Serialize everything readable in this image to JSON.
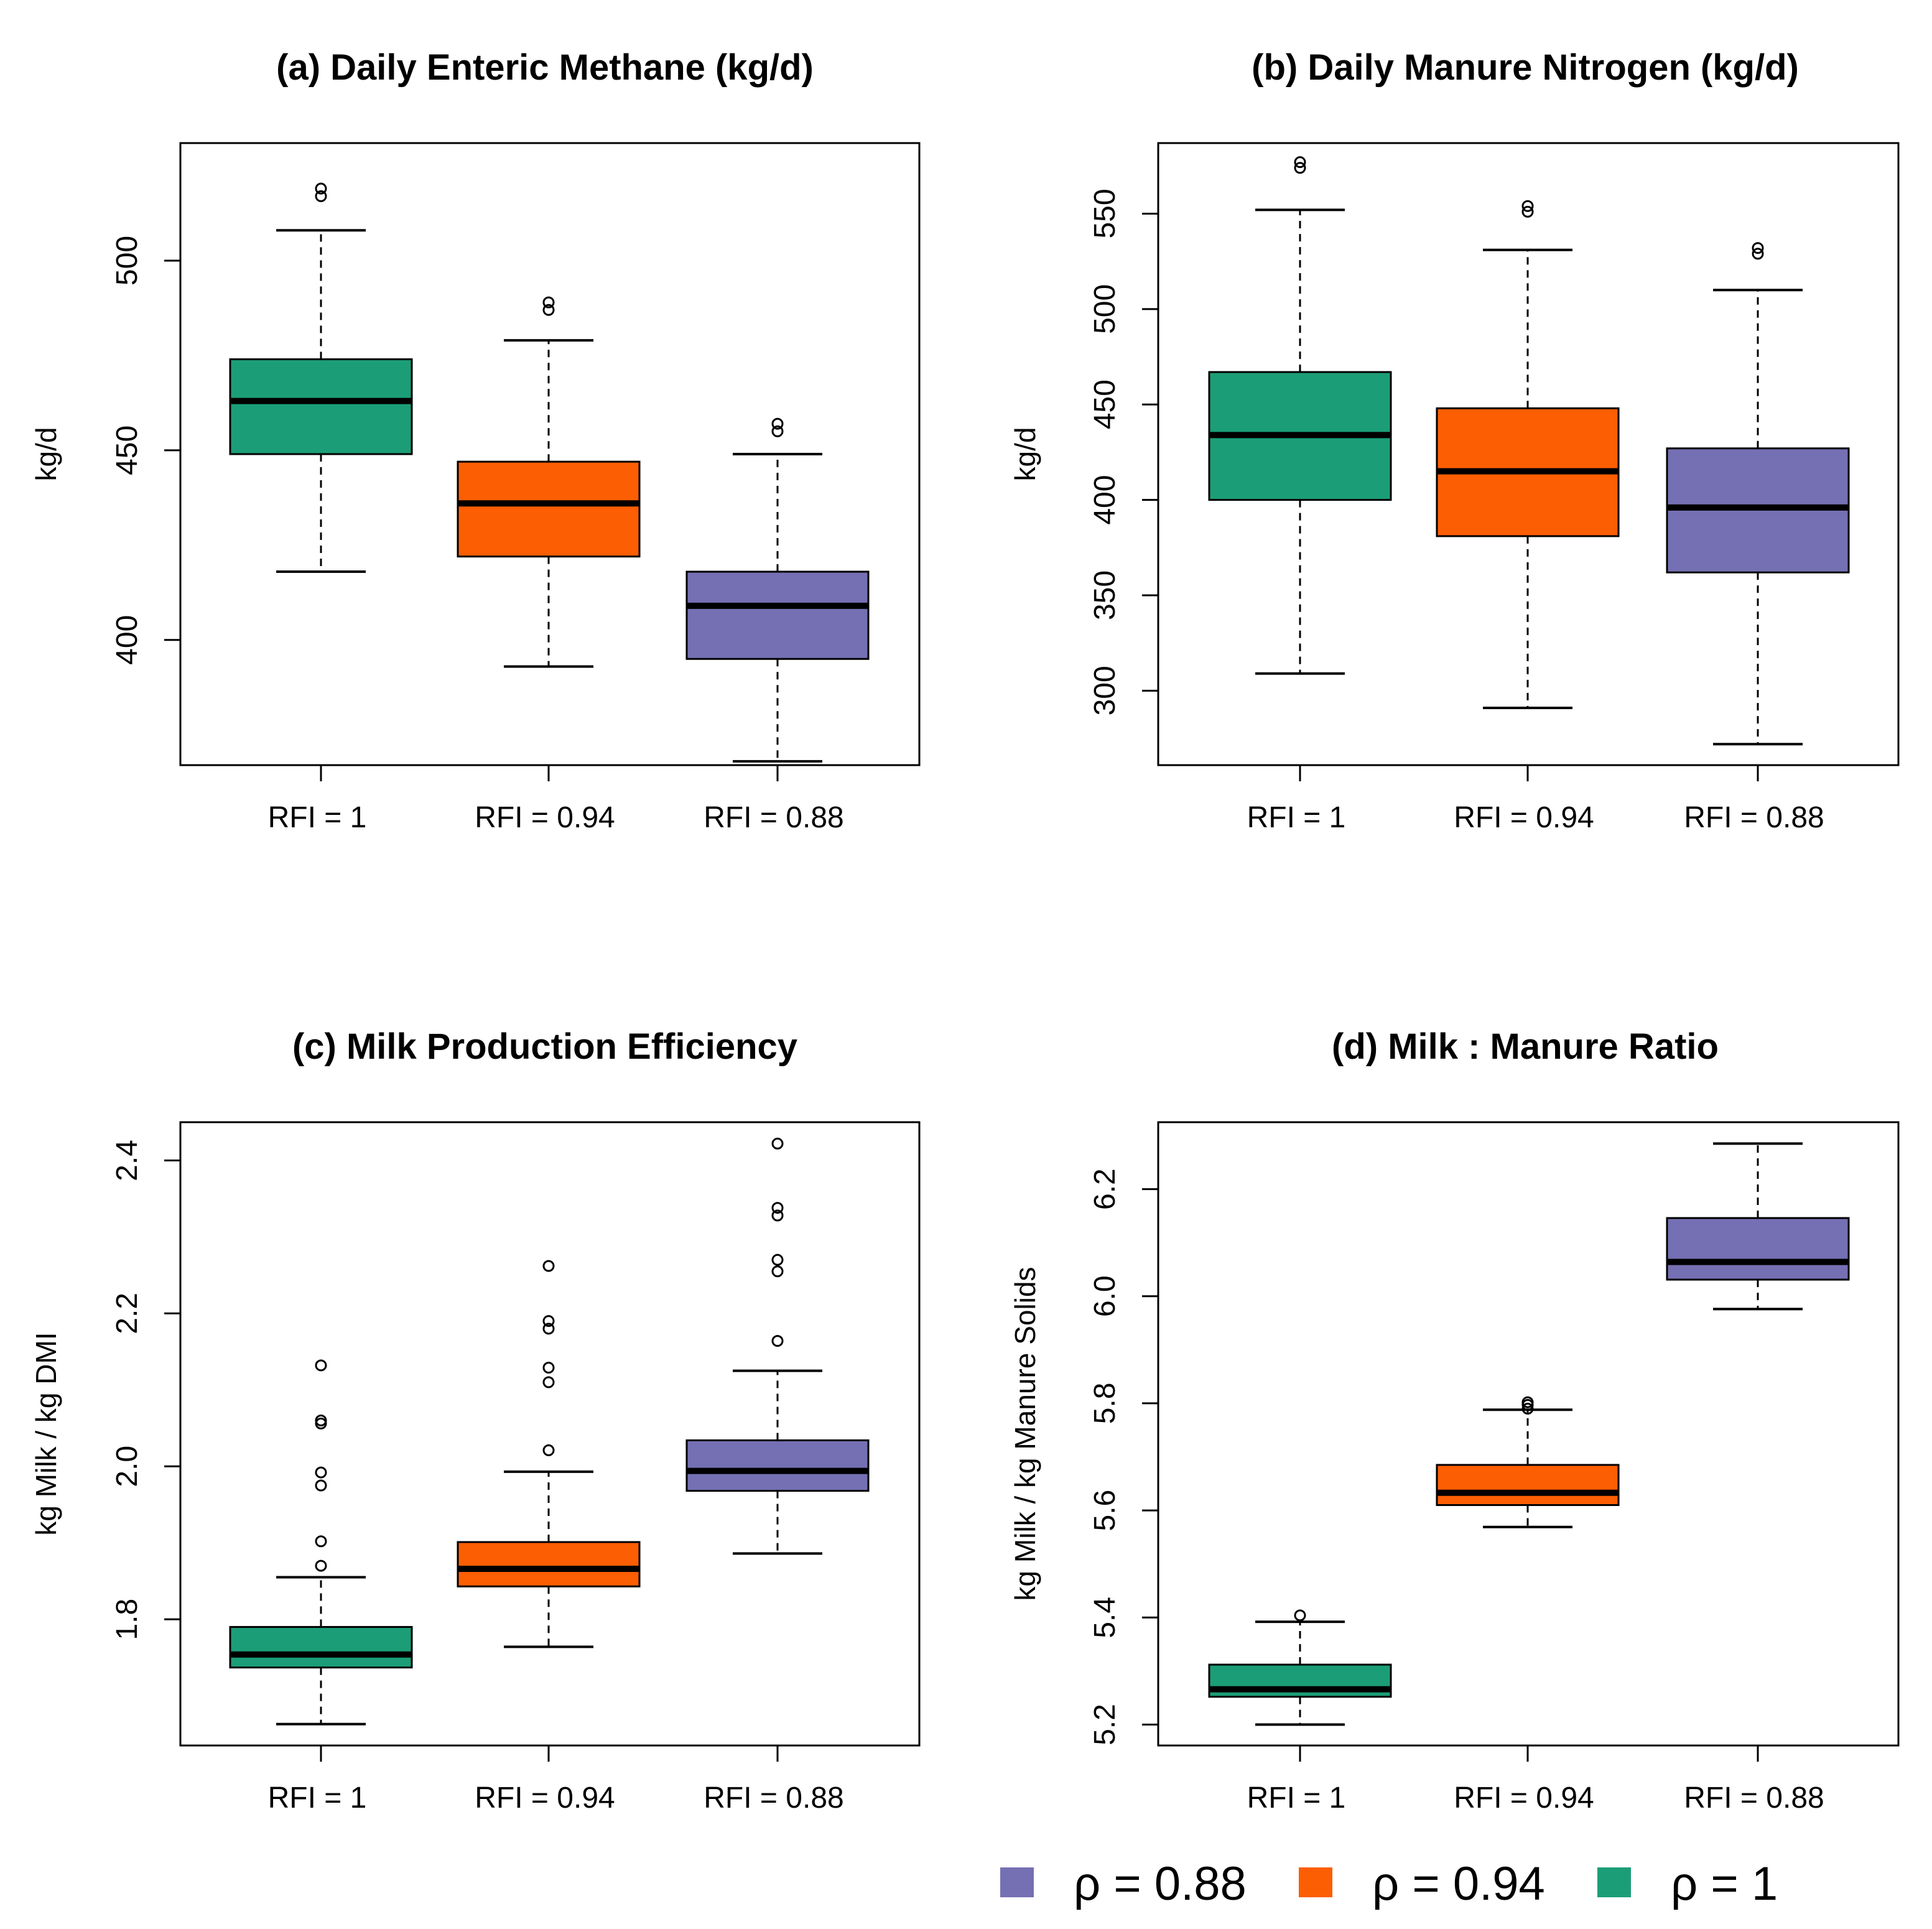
{
  "colors": {
    "rho_1": "#1b9e77",
    "rho_094": "#fc5e03",
    "rho_088": "#7570b3"
  },
  "legend": [
    {
      "label": "ρ = 0.88",
      "color": "#7570b3"
    },
    {
      "label": "ρ = 0.94",
      "color": "#fc5e03"
    },
    {
      "label": "ρ = 1",
      "color": "#1b9e77"
    }
  ],
  "chart_data": [
    {
      "type": "boxplot",
      "title": "(a) Daily Enteric Methane (kg/d)",
      "ylabel": "kg/d",
      "ylim": [
        367,
        531
      ],
      "yticks": [
        400,
        450,
        500
      ],
      "categories": [
        "RFI = 1",
        "RFI = 0.94",
        "RFI = 0.88"
      ],
      "boxes": [
        {
          "whisker_low": 418,
          "q1": 449,
          "median": 463,
          "q3": 474,
          "whisker_high": 508,
          "outliers": [
            517,
            519
          ]
        },
        {
          "whisker_low": 393,
          "q1": 422,
          "median": 436,
          "q3": 447,
          "whisker_high": 479,
          "outliers": [
            487,
            489
          ]
        },
        {
          "whisker_low": 368,
          "q1": 395,
          "median": 409,
          "q3": 418,
          "whisker_high": 449,
          "outliers": [
            455,
            457
          ]
        }
      ]
    },
    {
      "type": "boxplot",
      "title": "(b) Daily Manure Nitrogen (kg/d)",
      "ylabel": "kg/d",
      "ylim": [
        261,
        587
      ],
      "yticks": [
        300,
        350,
        400,
        450,
        500,
        550
      ],
      "categories": [
        "RFI = 1",
        "RFI = 0.94",
        "RFI = 0.88"
      ],
      "boxes": [
        {
          "whisker_low": 309,
          "q1": 400,
          "median": 434,
          "q3": 467,
          "whisker_high": 552,
          "outliers": [
            574,
            577
          ]
        },
        {
          "whisker_low": 291,
          "q1": 381,
          "median": 415,
          "q3": 448,
          "whisker_high": 531,
          "outliers": [
            551,
            554
          ]
        },
        {
          "whisker_low": 272,
          "q1": 362,
          "median": 396,
          "q3": 427,
          "whisker_high": 510,
          "outliers": [
            529,
            532
          ]
        }
      ]
    },
    {
      "type": "boxplot",
      "title": "(c) Milk Production Efficiency",
      "ylabel": "kg Milk / kg DMI",
      "ylim": [
        1.635,
        2.45
      ],
      "yticks": [
        1.8,
        2.0,
        2.2,
        2.4
      ],
      "tick_labels": [
        "1.8",
        "2.0",
        "2.2",
        "2.4"
      ],
      "categories": [
        "RFI = 1",
        "RFI = 0.94",
        "RFI = 0.88"
      ],
      "boxes": [
        {
          "whisker_low": 1.663,
          "q1": 1.737,
          "median": 1.754,
          "q3": 1.79,
          "whisker_high": 1.855,
          "outliers": [
            1.87,
            1.902,
            1.975,
            1.992,
            2.056,
            2.06,
            2.132
          ]
        },
        {
          "whisker_low": 1.764,
          "q1": 1.843,
          "median": 1.866,
          "q3": 1.901,
          "whisker_high": 1.993,
          "outliers": [
            2.021,
            2.11,
            2.129,
            2.18,
            2.19,
            2.262
          ]
        },
        {
          "whisker_low": 1.886,
          "q1": 1.968,
          "median": 1.994,
          "q3": 2.034,
          "whisker_high": 2.125,
          "outliers": [
            2.164,
            2.255,
            2.27,
            2.328,
            2.338,
            2.422
          ]
        }
      ]
    },
    {
      "type": "boxplot",
      "title": "(d) Milk : Manure Ratio",
      "ylabel": "kg Milk / kg Manure Solids",
      "ylim": [
        5.161,
        6.325
      ],
      "yticks": [
        5.2,
        5.4,
        5.6,
        5.8,
        6.0,
        6.2
      ],
      "tick_labels": [
        "5.2",
        "5.4",
        "5.6",
        "5.8",
        "6.0",
        "6.2"
      ],
      "categories": [
        "RFI = 1",
        "RFI = 0.94",
        "RFI = 0.88"
      ],
      "boxes": [
        {
          "whisker_low": 5.2,
          "q1": 5.252,
          "median": 5.266,
          "q3": 5.312,
          "whisker_high": 5.392,
          "outliers": [
            5.404
          ]
        },
        {
          "whisker_low": 5.569,
          "q1": 5.61,
          "median": 5.633,
          "q3": 5.685,
          "whisker_high": 5.788,
          "outliers": [
            5.79,
            5.797,
            5.802
          ]
        },
        {
          "whisker_low": 5.976,
          "q1": 6.031,
          "median": 6.064,
          "q3": 6.146,
          "whisker_high": 6.285,
          "outliers": []
        }
      ]
    }
  ]
}
